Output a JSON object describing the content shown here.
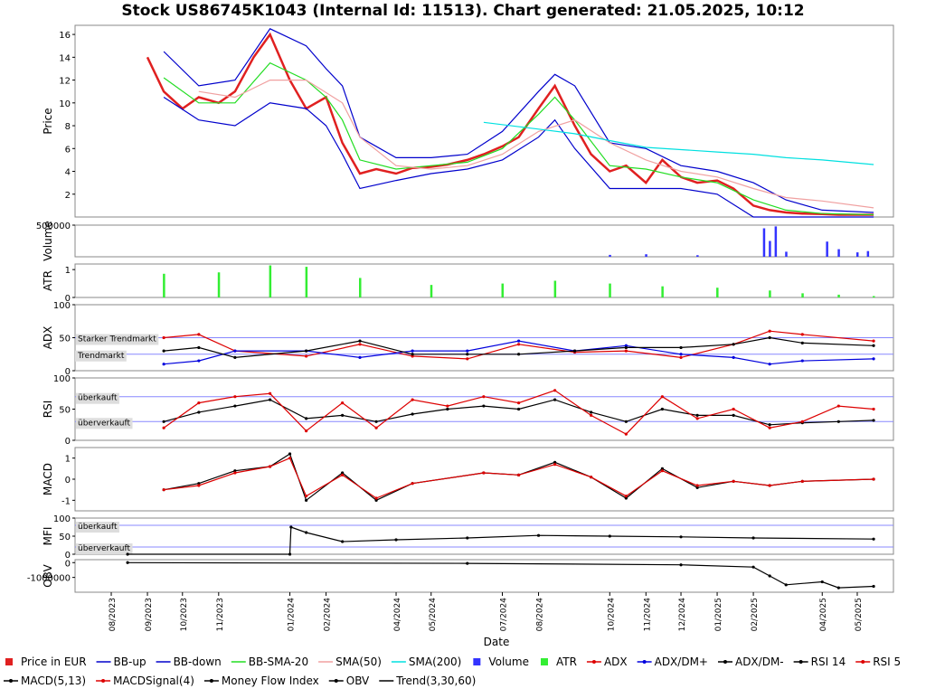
{
  "title": "Stock US86745K1043 (Internal Id: 11513). Chart generated: 21.05.2025, 10:12",
  "xlabel": "Date",
  "colors": {
    "price": "#e02020",
    "bb": "#0000cc",
    "bbsma": "#22dd22",
    "sma50": "#f0a0a0",
    "sma200": "#00e0e0",
    "volume": "#3333ff",
    "atr": "#33ee33",
    "black": "#000000",
    "red": "#dd0000",
    "blue": "#0000dd",
    "refline": "#8888ff"
  },
  "x_ticks": [
    "08/2023",
    "09/2023",
    "10/2023",
    "11/2023",
    "01/2024",
    "02/2024",
    "04/2024",
    "05/2024",
    "07/2024",
    "08/2024",
    "10/2024",
    "11/2024",
    "12/2024",
    "01/2025",
    "02/2025",
    "04/2025",
    "05/2025"
  ],
  "legend": [
    {
      "label": "Price in EUR",
      "icon": "square",
      "color": "#e02020"
    },
    {
      "label": "BB-up",
      "icon": "line",
      "color": "#0000cc"
    },
    {
      "label": "BB-down",
      "icon": "line",
      "color": "#0000cc"
    },
    {
      "label": "BB-SMA-20",
      "icon": "line",
      "color": "#22dd22"
    },
    {
      "label": "SMA(50)",
      "icon": "line",
      "color": "#f0a0a0"
    },
    {
      "label": "SMA(200)",
      "icon": "line",
      "color": "#00e0e0"
    },
    {
      "label": "Volume",
      "icon": "square",
      "color": "#3333ff"
    },
    {
      "label": "ATR",
      "icon": "square",
      "color": "#33ee33"
    },
    {
      "label": "ADX",
      "icon": "dotline",
      "color": "#dd0000"
    },
    {
      "label": "ADX/DM+",
      "icon": "dotline",
      "color": "#0000dd"
    },
    {
      "label": "ADX/DM-",
      "icon": "dotline",
      "color": "#000000"
    },
    {
      "label": "RSI 14",
      "icon": "dotline",
      "color": "#000000"
    },
    {
      "label": "RSI 5",
      "icon": "dotline",
      "color": "#dd0000"
    },
    {
      "label": "MACD(5,13)",
      "icon": "dotline",
      "color": "#000000"
    },
    {
      "label": "MACDSignal(4)",
      "icon": "dotline",
      "color": "#dd0000"
    },
    {
      "label": "Money Flow Index",
      "icon": "dotline",
      "color": "#000000"
    },
    {
      "label": "OBV",
      "icon": "dotline",
      "color": "#000000"
    },
    {
      "label": "Trend(3,30,60)",
      "icon": "line",
      "color": "#000000"
    }
  ],
  "chart_data": [
    {
      "type": "line",
      "ylabel": "Price",
      "ylim": [
        0,
        16.8
      ],
      "yticks": [
        2,
        4,
        6,
        8,
        10,
        12,
        14,
        16
      ],
      "series": [
        {
          "name": "Price in EUR",
          "x": [
            "2023-09-01",
            "2023-09-15",
            "2023-10-01",
            "2023-10-15",
            "2023-11-01",
            "2023-11-15",
            "2023-12-01",
            "2023-12-15",
            "2024-01-01",
            "2024-01-15",
            "2024-02-01",
            "2024-02-15",
            "2024-03-01",
            "2024-03-15",
            "2024-04-01",
            "2024-04-15",
            "2024-05-01",
            "2024-05-15",
            "2024-06-01",
            "2024-06-15",
            "2024-07-01",
            "2024-07-15",
            "2024-08-01",
            "2024-08-15",
            "2024-09-01",
            "2024-09-15",
            "2024-10-01",
            "2024-10-15",
            "2024-11-01",
            "2024-11-15",
            "2024-12-01",
            "2024-12-15",
            "2025-01-01",
            "2025-01-15",
            "2025-02-01",
            "2025-02-15",
            "2025-03-01",
            "2025-03-15",
            "2025-04-01",
            "2025-04-15",
            "2025-05-01",
            "2025-05-15"
          ],
          "values": [
            14.0,
            11.0,
            9.5,
            10.5,
            10.0,
            11.0,
            14.0,
            16.0,
            12.0,
            9.5,
            10.5,
            6.5,
            3.8,
            4.2,
            3.8,
            4.3,
            4.4,
            4.6,
            5.0,
            5.5,
            6.2,
            7.0,
            9.5,
            11.5,
            8.0,
            5.5,
            4.0,
            4.5,
            3.0,
            5.0,
            3.5,
            3.0,
            3.2,
            2.5,
            1.0,
            0.6,
            0.4,
            0.3,
            0.25,
            0.2,
            0.2,
            0.2
          ]
        },
        {
          "name": "BB-up",
          "x": [
            "2023-09-15",
            "2023-10-15",
            "2023-11-15",
            "2023-12-15",
            "2024-01-15",
            "2024-02-01",
            "2024-02-15",
            "2024-03-01",
            "2024-04-01",
            "2024-05-01",
            "2024-06-01",
            "2024-07-01",
            "2024-08-01",
            "2024-08-15",
            "2024-09-01",
            "2024-10-01",
            "2024-11-01",
            "2024-12-01",
            "2025-01-01",
            "2025-02-01",
            "2025-03-01",
            "2025-04-01",
            "2025-05-15"
          ],
          "values": [
            14.5,
            11.5,
            12.0,
            16.5,
            15.0,
            13.0,
            11.5,
            7.0,
            5.2,
            5.2,
            5.5,
            7.5,
            11.0,
            12.5,
            11.5,
            6.5,
            6.0,
            4.5,
            4.0,
            3.0,
            1.5,
            0.6,
            0.4
          ]
        },
        {
          "name": "BB-down",
          "x": [
            "2023-09-15",
            "2023-10-15",
            "2023-11-15",
            "2023-12-15",
            "2024-01-15",
            "2024-02-01",
            "2024-02-15",
            "2024-03-01",
            "2024-04-01",
            "2024-05-01",
            "2024-06-01",
            "2024-07-01",
            "2024-08-01",
            "2024-08-15",
            "2024-09-01",
            "2024-10-01",
            "2024-11-01",
            "2024-12-01",
            "2025-01-01",
            "2025-02-01",
            "2025-03-01",
            "2025-04-01",
            "2025-05-15"
          ],
          "values": [
            10.5,
            8.5,
            8.0,
            10.0,
            9.5,
            8.0,
            5.5,
            2.5,
            3.2,
            3.8,
            4.2,
            5.0,
            7.0,
            8.5,
            6.0,
            2.5,
            2.5,
            2.5,
            2.0,
            0.0,
            0.0,
            0.0,
            0.0
          ]
        },
        {
          "name": "BB-SMA-20",
          "x": [
            "2023-09-15",
            "2023-10-15",
            "2023-11-15",
            "2023-12-15",
            "2024-01-15",
            "2024-02-01",
            "2024-02-15",
            "2024-03-01",
            "2024-04-01",
            "2024-05-01",
            "2024-06-01",
            "2024-07-01",
            "2024-08-01",
            "2024-08-15",
            "2024-09-01",
            "2024-10-01",
            "2024-11-01",
            "2024-12-01",
            "2025-01-01",
            "2025-02-01",
            "2025-03-01",
            "2025-04-01",
            "2025-05-15"
          ],
          "values": [
            12.2,
            10.0,
            10.0,
            13.5,
            12.0,
            10.5,
            8.5,
            5.0,
            4.2,
            4.5,
            4.8,
            6.0,
            9.0,
            10.5,
            8.5,
            4.5,
            4.2,
            3.5,
            3.0,
            1.5,
            0.6,
            0.3,
            0.2
          ]
        },
        {
          "name": "SMA(50)",
          "x": [
            "2023-10-15",
            "2023-11-15",
            "2023-12-15",
            "2024-01-15",
            "2024-02-15",
            "2024-03-01",
            "2024-04-01",
            "2024-05-01",
            "2024-06-01",
            "2024-07-01",
            "2024-08-01",
            "2024-09-01",
            "2024-10-01",
            "2024-11-01",
            "2024-12-01",
            "2025-01-01",
            "2025-02-01",
            "2025-03-01",
            "2025-04-01",
            "2025-05-15"
          ],
          "values": [
            11.0,
            10.5,
            12.0,
            12.0,
            10.0,
            7.0,
            4.5,
            4.2,
            4.5,
            5.5,
            7.5,
            8.5,
            6.5,
            5.0,
            4.0,
            3.5,
            2.5,
            1.7,
            1.4,
            0.8
          ]
        },
        {
          "name": "SMA(200)",
          "x": [
            "2024-06-15",
            "2024-08-01",
            "2024-09-01",
            "2024-10-01",
            "2024-11-01",
            "2024-12-01",
            "2025-01-01",
            "2025-02-01",
            "2025-03-01",
            "2025-04-01",
            "2025-05-15"
          ],
          "values": [
            8.3,
            7.7,
            7.3,
            6.7,
            6.1,
            5.9,
            5.7,
            5.5,
            5.2,
            5.0,
            4.6
          ]
        }
      ]
    },
    {
      "type": "bar",
      "ylabel": "Volume",
      "ylim": [
        0,
        500000
      ],
      "yticks": [
        500000
      ],
      "x": [
        "2024-10-01",
        "2024-11-01",
        "2024-12-15",
        "2025-02-10",
        "2025-02-15",
        "2025-02-20",
        "2025-03-01",
        "2025-04-05",
        "2025-04-15",
        "2025-05-01",
        "2025-05-10"
      ],
      "values": [
        30000,
        40000,
        25000,
        450000,
        250000,
        480000,
        80000,
        240000,
        120000,
        70000,
        90000
      ]
    },
    {
      "type": "bar",
      "ylabel": "ATR",
      "ylim": [
        0,
        1.2
      ],
      "yticks": [
        0,
        1
      ],
      "x": [
        "2023-09-15",
        "2023-11-01",
        "2023-12-15",
        "2024-01-15",
        "2024-03-01",
        "2024-05-01",
        "2024-07-01",
        "2024-08-15",
        "2024-10-01",
        "2024-11-15",
        "2025-01-01",
        "2025-02-15",
        "2025-03-15",
        "2025-04-15",
        "2025-05-15"
      ],
      "values": [
        0.85,
        0.9,
        1.15,
        1.1,
        0.7,
        0.45,
        0.5,
        0.6,
        0.5,
        0.4,
        0.35,
        0.25,
        0.15,
        0.1,
        0.05
      ]
    },
    {
      "type": "line",
      "ylabel": "ADX",
      "ylim": [
        0,
        100
      ],
      "yticks": [
        0,
        50,
        100
      ],
      "ref_lines": [
        {
          "value": 50,
          "label": "Starker Trendmarkt"
        },
        {
          "value": 25,
          "label": "Trendmarkt"
        }
      ],
      "series": [
        {
          "name": "ADX",
          "x": [
            "2023-09-15",
            "2023-10-15",
            "2023-11-15",
            "2024-01-15",
            "2024-03-01",
            "2024-04-15",
            "2024-06-01",
            "2024-07-15",
            "2024-09-01",
            "2024-10-15",
            "2024-12-01",
            "2025-01-15",
            "2025-02-15",
            "2025-03-15",
            "2025-05-15"
          ],
          "values": [
            50,
            55,
            30,
            22,
            40,
            22,
            18,
            40,
            28,
            30,
            20,
            40,
            60,
            55,
            45
          ]
        },
        {
          "name": "ADX/DM+",
          "x": [
            "2023-09-15",
            "2023-10-15",
            "2023-11-15",
            "2024-01-15",
            "2024-03-01",
            "2024-04-15",
            "2024-06-01",
            "2024-07-15",
            "2024-09-01",
            "2024-10-15",
            "2024-12-01",
            "2025-01-15",
            "2025-02-15",
            "2025-03-15",
            "2025-05-15"
          ],
          "values": [
            10,
            15,
            30,
            30,
            20,
            30,
            30,
            45,
            30,
            38,
            25,
            20,
            10,
            15,
            18
          ]
        },
        {
          "name": "ADX/DM-",
          "x": [
            "2023-09-15",
            "2023-10-15",
            "2023-11-15",
            "2024-01-15",
            "2024-03-01",
            "2024-04-15",
            "2024-06-01",
            "2024-07-15",
            "2024-09-01",
            "2024-10-15",
            "2024-12-01",
            "2025-01-15",
            "2025-02-15",
            "2025-03-15",
            "2025-05-15"
          ],
          "values": [
            30,
            35,
            20,
            30,
            45,
            25,
            25,
            25,
            30,
            35,
            35,
            40,
            50,
            42,
            38
          ]
        }
      ]
    },
    {
      "type": "line",
      "ylabel": "RSI",
      "ylim": [
        0,
        100
      ],
      "yticks": [
        0,
        50,
        100
      ],
      "ref_lines": [
        {
          "value": 70,
          "label": "überkauft"
        },
        {
          "value": 30,
          "label": "überverkauft"
        }
      ],
      "series": [
        {
          "name": "RSI 14",
          "x": [
            "2023-09-15",
            "2023-10-15",
            "2023-11-15",
            "2023-12-15",
            "2024-01-15",
            "2024-02-15",
            "2024-03-15",
            "2024-04-15",
            "2024-05-15",
            "2024-06-15",
            "2024-07-15",
            "2024-08-15",
            "2024-09-15",
            "2024-10-15",
            "2024-11-15",
            "2024-12-15",
            "2025-01-15",
            "2025-02-15",
            "2025-03-15",
            "2025-04-15",
            "2025-05-15"
          ],
          "values": [
            30,
            45,
            55,
            65,
            35,
            40,
            30,
            42,
            50,
            55,
            50,
            65,
            45,
            30,
            50,
            40,
            40,
            25,
            28,
            30,
            32
          ]
        },
        {
          "name": "RSI 5",
          "x": [
            "2023-09-15",
            "2023-10-15",
            "2023-11-15",
            "2023-12-15",
            "2024-01-15",
            "2024-02-15",
            "2024-03-15",
            "2024-04-15",
            "2024-05-15",
            "2024-06-15",
            "2024-07-15",
            "2024-08-15",
            "2024-09-15",
            "2024-10-15",
            "2024-11-15",
            "2024-12-15",
            "2025-01-15",
            "2025-02-15",
            "2025-03-15",
            "2025-04-15",
            "2025-05-15"
          ],
          "values": [
            20,
            60,
            70,
            75,
            15,
            60,
            20,
            65,
            55,
            70,
            60,
            80,
            40,
            10,
            70,
            35,
            50,
            20,
            30,
            55,
            50
          ]
        }
      ]
    },
    {
      "type": "line",
      "ylabel": "MACD",
      "ylim": [
        -1.5,
        1.5
      ],
      "yticks": [
        -1,
        0,
        1
      ],
      "series": [
        {
          "name": "MACD(5,13)",
          "x": [
            "2023-09-15",
            "2023-10-15",
            "2023-11-15",
            "2023-12-15",
            "2024-01-01",
            "2024-01-15",
            "2024-02-15",
            "2024-03-15",
            "2024-04-15",
            "2024-06-15",
            "2024-07-15",
            "2024-08-15",
            "2024-09-15",
            "2024-10-15",
            "2024-11-15",
            "2024-12-15",
            "2025-01-15",
            "2025-02-15",
            "2025-03-15",
            "2025-05-15"
          ],
          "values": [
            -0.5,
            -0.2,
            0.4,
            0.6,
            1.2,
            -1.0,
            0.3,
            -1.0,
            -0.2,
            0.3,
            0.2,
            0.8,
            0.1,
            -0.9,
            0.5,
            -0.4,
            -0.1,
            -0.3,
            -0.1,
            0.0
          ]
        },
        {
          "name": "MACDSignal(4)",
          "x": [
            "2023-09-15",
            "2023-10-15",
            "2023-11-15",
            "2023-12-15",
            "2024-01-01",
            "2024-01-15",
            "2024-02-15",
            "2024-03-15",
            "2024-04-15",
            "2024-06-15",
            "2024-07-15",
            "2024-08-15",
            "2024-09-15",
            "2024-10-15",
            "2024-11-15",
            "2024-12-15",
            "2025-01-15",
            "2025-02-15",
            "2025-03-15",
            "2025-05-15"
          ],
          "values": [
            -0.5,
            -0.3,
            0.3,
            0.6,
            1.0,
            -0.8,
            0.2,
            -0.9,
            -0.2,
            0.3,
            0.2,
            0.7,
            0.1,
            -0.8,
            0.4,
            -0.3,
            -0.1,
            -0.3,
            -0.1,
            0.0
          ]
        }
      ]
    },
    {
      "type": "line",
      "ylabel": "MFI",
      "ylim": [
        0,
        100
      ],
      "yticks": [
        0,
        50,
        100
      ],
      "ref_lines": [
        {
          "value": 80,
          "label": "überkauft"
        },
        {
          "value": 20,
          "label": "überverkauft"
        }
      ],
      "series": [
        {
          "name": "Money Flow Index",
          "x": [
            "2023-08-15",
            "2024-01-01",
            "2024-01-02",
            "2024-01-15",
            "2024-02-15",
            "2024-04-01",
            "2024-06-01",
            "2024-08-01",
            "2024-10-01",
            "2024-12-01",
            "2025-02-01",
            "2025-05-15"
          ],
          "values": [
            0,
            0,
            75,
            60,
            35,
            40,
            45,
            52,
            50,
            48,
            45,
            42
          ]
        }
      ]
    },
    {
      "type": "line",
      "ylabel": "OBV",
      "ylim": [
        -2000000,
        200000
      ],
      "yticks": [
        0,
        -1000000
      ],
      "series": [
        {
          "name": "OBV",
          "x": [
            "2023-08-15",
            "2024-06-01",
            "2024-12-01",
            "2025-02-01",
            "2025-02-15",
            "2025-03-01",
            "2025-04-01",
            "2025-04-15",
            "2025-05-15"
          ],
          "values": [
            0,
            -50000,
            -150000,
            -300000,
            -900000,
            -1500000,
            -1300000,
            -1700000,
            -1600000
          ]
        }
      ]
    }
  ]
}
